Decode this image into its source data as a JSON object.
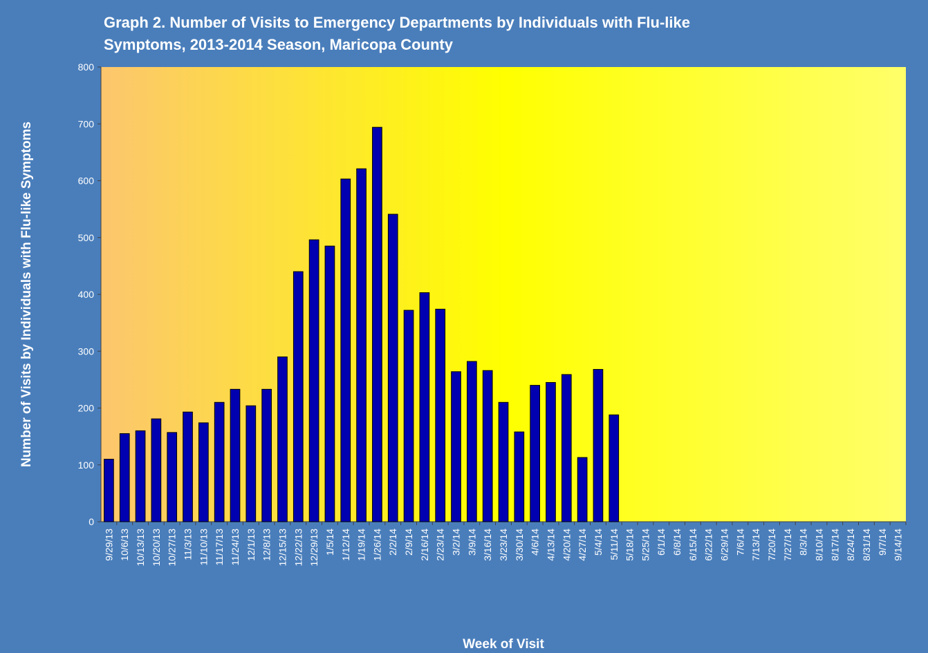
{
  "chart_data": {
    "type": "bar",
    "title": [
      "Graph 2. Number of Visits to Emergency Departments by Individuals with Flu-like",
      "Symptoms, 2013-2014 Season, Maricopa County"
    ],
    "x_label": "Week of Visit",
    "y_label": "Number of Visits by Individuals with Flu-like Symptoms",
    "categories": [
      "9/29/13",
      "10/6/13",
      "10/13/13",
      "10/20/13",
      "10/27/13",
      "11/3/13",
      "11/10/13",
      "11/17/13",
      "11/24/13",
      "12/1/13",
      "12/8/13",
      "12/15/13",
      "12/22/13",
      "12/29/13",
      "1/5/14",
      "1/12/14",
      "1/19/14",
      "1/26/14",
      "2/2/14",
      "2/9/14",
      "2/16/14",
      "2/23/14",
      "3/2/14",
      "3/9/14",
      "3/16/14",
      "3/23/14",
      "3/30/14",
      "4/6/14",
      "4/13/14",
      "4/20/14",
      "4/27/14",
      "5/4/14",
      "5/11/14",
      "5/18/14",
      "5/25/14",
      "6/1/14",
      "6/8/14",
      "6/15/14",
      "6/22/14",
      "6/29/14",
      "7/6/14",
      "7/13/14",
      "7/20/14",
      "7/27/14",
      "8/3/14",
      "8/10/14",
      "8/17/14",
      "8/24/14",
      "8/31/14",
      "9/7/14",
      "9/14/14"
    ],
    "values": [
      110,
      155,
      160,
      181,
      157,
      193,
      174,
      210,
      233,
      204,
      233,
      290,
      440,
      496,
      485,
      603,
      621,
      694,
      541,
      372,
      403,
      374,
      264,
      282,
      266,
      210,
      158,
      240,
      245,
      259,
      113,
      268,
      188,
      null,
      null,
      null,
      null,
      null,
      null,
      null,
      null,
      null,
      null,
      null,
      null,
      null,
      null,
      null,
      null,
      null,
      null
    ],
    "color": "#0000b0",
    "ylim": [
      0,
      800
    ],
    "yticks": [
      0,
      100,
      200,
      300,
      400,
      500,
      600,
      700,
      800
    ]
  }
}
